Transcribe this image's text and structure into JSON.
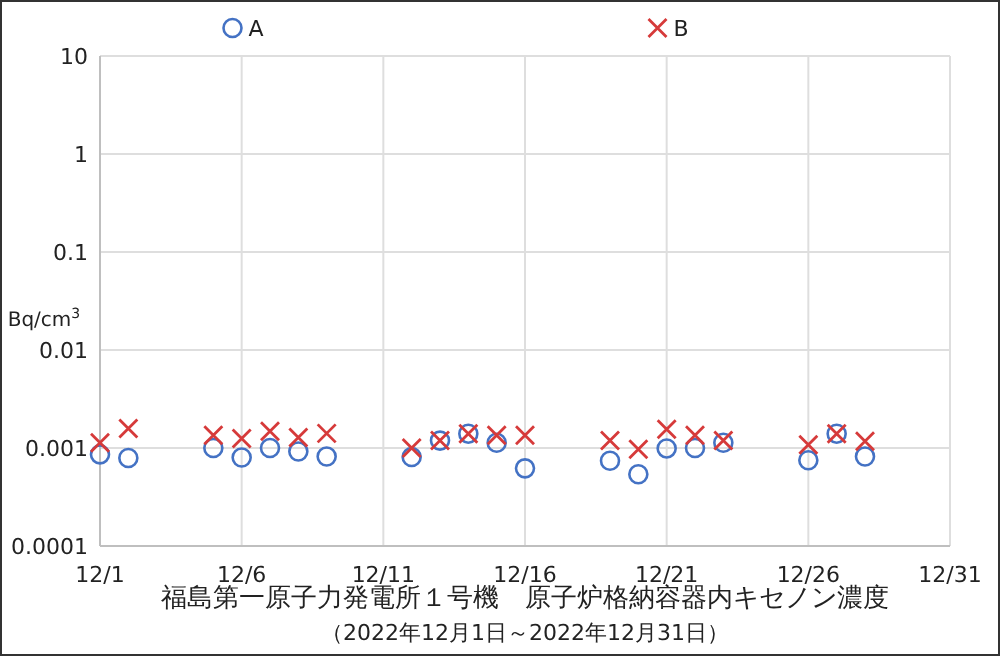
{
  "chart_data": {
    "type": "scatter",
    "title": "福島第一原子力発電所１号機　原子炉格納容器内キセノン濃度",
    "subtitle": "（2022年12月1日～2022年12月31日）",
    "ylabel": "Bq/cm$^{3}$",
    "x": [
      "2022-12-01",
      "2022-12-02",
      "2022-12-05",
      "2022-12-06",
      "2022-12-07",
      "2022-12-08",
      "2022-12-09",
      "2022-12-12",
      "2022-12-13",
      "2022-12-14",
      "2022-12-15",
      "2022-12-16",
      "2022-12-19",
      "2022-12-20",
      "2022-12-21",
      "2022-12-22",
      "2022-12-23",
      "2022-12-26",
      "2022-12-27",
      "2022-12-28"
    ],
    "series": [
      {
        "name": "A",
        "color": "#4472c4",
        "marker": "circle",
        "values": [
          0.00086,
          0.00079,
          0.001,
          0.0008,
          0.001,
          0.00092,
          0.00082,
          0.00081,
          0.00119,
          0.0014,
          0.00113,
          0.00062,
          0.00074,
          0.00054,
          0.00099,
          0.001,
          0.00113,
          0.00075,
          0.0014,
          0.00082
        ]
      },
      {
        "name": "B",
        "color": "#d63a3a",
        "marker": "cross",
        "values": [
          0.00113,
          0.00158,
          0.00135,
          0.00125,
          0.00148,
          0.00128,
          0.00141,
          0.001,
          0.00119,
          0.0014,
          0.00135,
          0.00135,
          0.00119,
          0.00097,
          0.00155,
          0.00135,
          0.00119,
          0.00108,
          0.0014,
          0.00117
        ]
      }
    ],
    "log": "y",
    "ylim": [
      0.0001,
      10
    ],
    "yticks": [
      0.0001,
      0.001,
      0.01,
      0.1,
      1,
      10
    ],
    "xlim": [
      "2022-12-01",
      "2022-12-31"
    ],
    "xticks": [
      {
        "value": "2022-12-01",
        "label": "12/1"
      },
      {
        "value": "2022-12-06",
        "label": "12/6"
      },
      {
        "value": "2022-12-11",
        "label": "12/11"
      },
      {
        "value": "2022-12-16",
        "label": "12/16"
      },
      {
        "value": "2022-12-21",
        "label": "12/21"
      },
      {
        "value": "2022-12-26",
        "label": "12/26"
      },
      {
        "value": "2022-12-31",
        "label": "12/31"
      }
    ],
    "grid": true,
    "legend": "top"
  }
}
